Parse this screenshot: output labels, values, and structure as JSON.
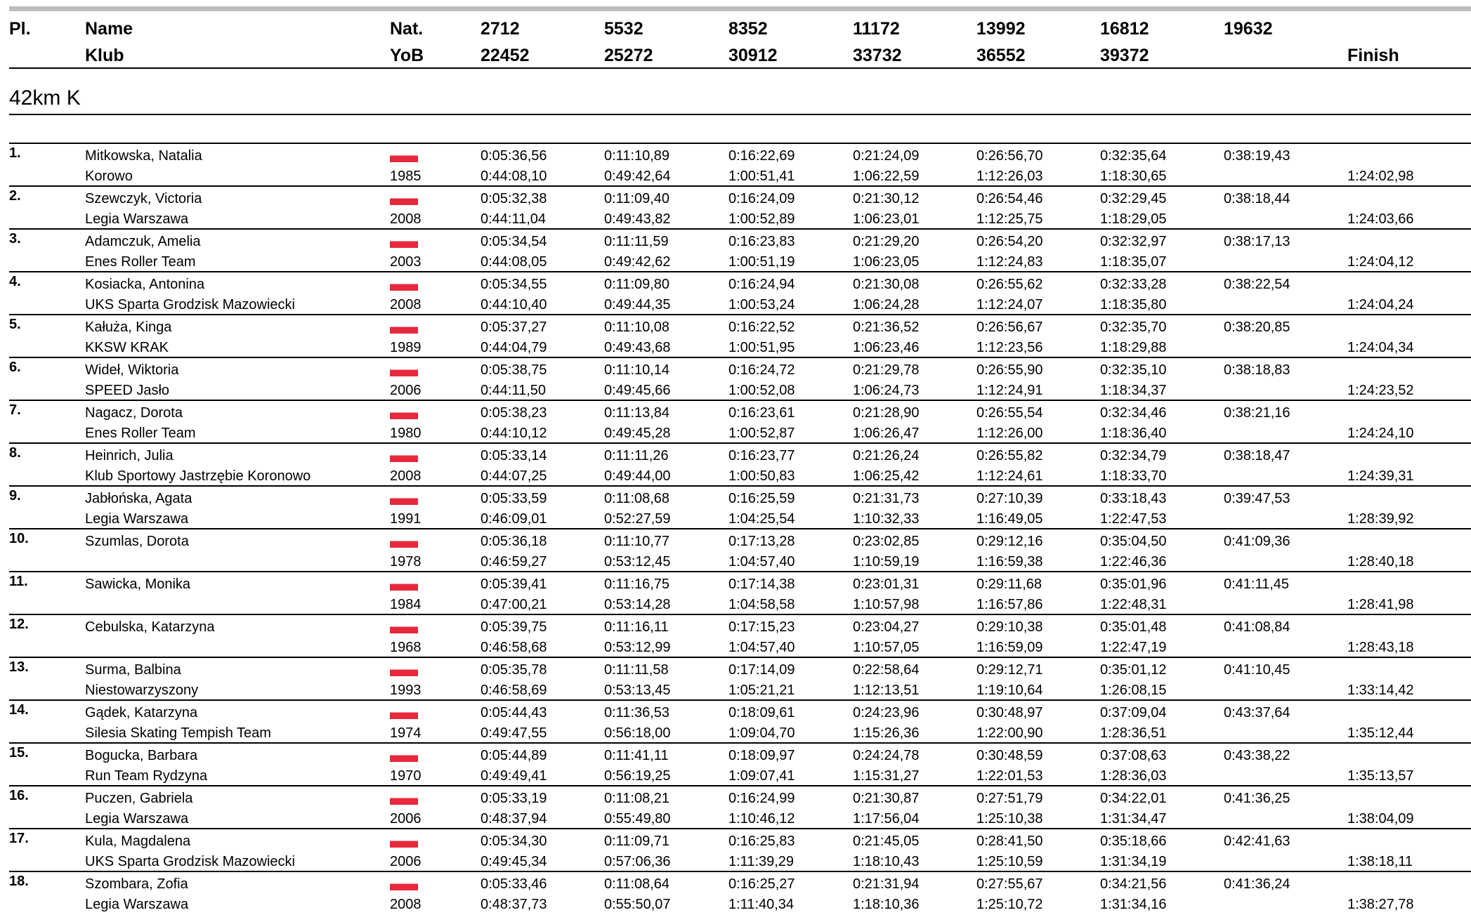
{
  "header": {
    "place": "Pl.",
    "name": "Name",
    "club": "Klub",
    "nat": "Nat.",
    "yob": "YoB",
    "splits_top": [
      "2712",
      "5532",
      "8352",
      "11172",
      "13992",
      "16812",
      "19632"
    ],
    "splits_bottom": [
      "22452",
      "25272",
      "30912",
      "33732",
      "36552",
      "39372"
    ],
    "finish": "Finish"
  },
  "section": "42km K",
  "rows": [
    {
      "place": "1.",
      "name": "Mitkowska, Natalia",
      "club": "Korowo",
      "yob": "1985",
      "splits": [
        "0:05:36,56",
        "0:11:10,89",
        "0:16:22,69",
        "0:21:24,09",
        "0:26:56,70",
        "0:32:35,64",
        "0:38:19,43"
      ],
      "splits2": [
        "0:44:08,10",
        "0:49:42,64",
        "1:00:51,41",
        "1:06:22,59",
        "1:12:26,03",
        "1:18:30,65"
      ],
      "finish": "1:24:02,98"
    },
    {
      "place": "2.",
      "name": "Szewczyk, Victoria",
      "club": "Legia Warszawa",
      "yob": "2008",
      "splits": [
        "0:05:32,38",
        "0:11:09,40",
        "0:16:24,09",
        "0:21:30,12",
        "0:26:54,46",
        "0:32:29,45",
        "0:38:18,44"
      ],
      "splits2": [
        "0:44:11,04",
        "0:49:43,82",
        "1:00:52,89",
        "1:06:23,01",
        "1:12:25,75",
        "1:18:29,05"
      ],
      "finish": "1:24:03,66"
    },
    {
      "place": "3.",
      "name": "Adamczuk, Amelia",
      "club": "Enes Roller Team",
      "yob": "2003",
      "splits": [
        "0:05:34,54",
        "0:11:11,59",
        "0:16:23,83",
        "0:21:29,20",
        "0:26:54,20",
        "0:32:32,97",
        "0:38:17,13"
      ],
      "splits2": [
        "0:44:08,05",
        "0:49:42,62",
        "1:00:51,19",
        "1:06:23,05",
        "1:12:24,83",
        "1:18:35,07"
      ],
      "finish": "1:24:04,12"
    },
    {
      "place": "4.",
      "name": "Kosiacka, Antonina",
      "club": "UKS Sparta Grodzisk Mazowiecki",
      "yob": "2008",
      "splits": [
        "0:05:34,55",
        "0:11:09,80",
        "0:16:24,94",
        "0:21:30,08",
        "0:26:55,62",
        "0:32:33,28",
        "0:38:22,54"
      ],
      "splits2": [
        "0:44:10,40",
        "0:49:44,35",
        "1:00:53,24",
        "1:06:24,28",
        "1:12:24,07",
        "1:18:35,80"
      ],
      "finish": "1:24:04,24"
    },
    {
      "place": "5.",
      "name": "Kałuża, Kinga",
      "club": "KKSW KRAK",
      "yob": "1989",
      "splits": [
        "0:05:37,27",
        "0:11:10,08",
        "0:16:22,52",
        "0:21:36,52",
        "0:26:56,67",
        "0:32:35,70",
        "0:38:20,85"
      ],
      "splits2": [
        "0:44:04,79",
        "0:49:43,68",
        "1:00:51,95",
        "1:06:23,46",
        "1:12:23,56",
        "1:18:29,88"
      ],
      "finish": "1:24:04,34"
    },
    {
      "place": "6.",
      "name": "Wideł, Wiktoria",
      "club": "SPEED Jasło",
      "yob": "2006",
      "splits": [
        "0:05:38,75",
        "0:11:10,14",
        "0:16:24,72",
        "0:21:29,78",
        "0:26:55,90",
        "0:32:35,10",
        "0:38:18,83"
      ],
      "splits2": [
        "0:44:11,50",
        "0:49:45,66",
        "1:00:52,08",
        "1:06:24,73",
        "1:12:24,91",
        "1:18:34,37"
      ],
      "finish": "1:24:23,52"
    },
    {
      "place": "7.",
      "name": "Nagacz, Dorota",
      "club": "Enes Roller Team",
      "yob": "1980",
      "splits": [
        "0:05:38,23",
        "0:11:13,84",
        "0:16:23,61",
        "0:21:28,90",
        "0:26:55,54",
        "0:32:34,46",
        "0:38:21,16"
      ],
      "splits2": [
        "0:44:10,12",
        "0:49:45,28",
        "1:00:52,87",
        "1:06:26,47",
        "1:12:26,00",
        "1:18:36,40"
      ],
      "finish": "1:24:24,10"
    },
    {
      "place": "8.",
      "name": "Heinrich, Julia",
      "club": "Klub Sportowy Jastrzębie Koronowo",
      "yob": "2008",
      "splits": [
        "0:05:33,14",
        "0:11:11,26",
        "0:16:23,77",
        "0:21:26,24",
        "0:26:55,82",
        "0:32:34,79",
        "0:38:18,47"
      ],
      "splits2": [
        "0:44:07,25",
        "0:49:44,00",
        "1:00:50,83",
        "1:06:25,42",
        "1:12:24,61",
        "1:18:33,70"
      ],
      "finish": "1:24:39,31"
    },
    {
      "place": "9.",
      "name": "Jabłońska, Agata",
      "club": "Legia Warszawa",
      "yob": "1991",
      "splits": [
        "0:05:33,59",
        "0:11:08,68",
        "0:16:25,59",
        "0:21:31,73",
        "0:27:10,39",
        "0:33:18,43",
        "0:39:47,53"
      ],
      "splits2": [
        "0:46:09,01",
        "0:52:27,59",
        "1:04:25,54",
        "1:10:32,33",
        "1:16:49,05",
        "1:22:47,53"
      ],
      "finish": "1:28:39,92"
    },
    {
      "place": "10.",
      "name": "Szumlas, Dorota",
      "yob": "1978",
      "splits": [
        "0:05:36,18",
        "0:11:10,77",
        "0:17:13,28",
        "0:23:02,85",
        "0:29:12,16",
        "0:35:04,50",
        "0:41:09,36"
      ],
      "splits2": [
        "0:46:59,27",
        "0:53:12,45",
        "1:04:57,40",
        "1:10:59,19",
        "1:16:59,38",
        "1:22:46,36"
      ],
      "finish": "1:28:40,18"
    },
    {
      "place": "11.",
      "name": "Sawicka, Monika",
      "yob": "1984",
      "splits": [
        "0:05:39,41",
        "0:11:16,75",
        "0:17:14,38",
        "0:23:01,31",
        "0:29:11,68",
        "0:35:01,96",
        "0:41:11,45"
      ],
      "splits2": [
        "0:47:00,21",
        "0:53:14,28",
        "1:04:58,58",
        "1:10:57,98",
        "1:16:57,86",
        "1:22:48,31"
      ],
      "finish": "1:28:41,98"
    },
    {
      "place": "12.",
      "name": "Cebulska, Katarzyna",
      "yob": "1968",
      "splits": [
        "0:05:39,75",
        "0:11:16,11",
        "0:17:15,23",
        "0:23:04,27",
        "0:29:10,38",
        "0:35:01,48",
        "0:41:08,84"
      ],
      "splits2": [
        "0:46:58,68",
        "0:53:12,99",
        "1:04:57,40",
        "1:10:57,05",
        "1:16:59,09",
        "1:22:47,19"
      ],
      "finish": "1:28:43,18"
    },
    {
      "place": "13.",
      "name": "Surma, Balbina",
      "club": "Niestowarzyszony",
      "yob": "1993",
      "splits": [
        "0:05:35,78",
        "0:11:11,58",
        "0:17:14,09",
        "0:22:58,64",
        "0:29:12,71",
        "0:35:01,12",
        "0:41:10,45"
      ],
      "splits2": [
        "0:46:58,69",
        "0:53:13,45",
        "1:05:21,21",
        "1:12:13,51",
        "1:19:10,64",
        "1:26:08,15"
      ],
      "finish": "1:33:14,42"
    },
    {
      "place": "14.",
      "name": "Gądek, Katarzyna",
      "club": "Silesia Skating Tempish Team",
      "yob": "1974",
      "splits": [
        "0:05:44,43",
        "0:11:36,53",
        "0:18:09,61",
        "0:24:23,96",
        "0:30:48,97",
        "0:37:09,04",
        "0:43:37,64"
      ],
      "splits2": [
        "0:49:47,55",
        "0:56:18,00",
        "1:09:04,70",
        "1:15:26,36",
        "1:22:00,90",
        "1:28:36,51"
      ],
      "finish": "1:35:12,44"
    },
    {
      "place": "15.",
      "name": "Bogucka, Barbara",
      "club": "Run Team Rydzyna",
      "yob": "1970",
      "splits": [
        "0:05:44,89",
        "0:11:41,11",
        "0:18:09,97",
        "0:24:24,78",
        "0:30:48,59",
        "0:37:08,63",
        "0:43:38,22"
      ],
      "splits2": [
        "0:49:49,41",
        "0:56:19,25",
        "1:09:07,41",
        "1:15:31,27",
        "1:22:01,53",
        "1:28:36,03"
      ],
      "finish": "1:35:13,57"
    },
    {
      "place": "16.",
      "name": "Puczen, Gabriela",
      "club": "Legia Warszawa",
      "yob": "2006",
      "splits": [
        "0:05:33,19",
        "0:11:08,21",
        "0:16:24,99",
        "0:21:30,87",
        "0:27:51,79",
        "0:34:22,01",
        "0:41:36,25"
      ],
      "splits2": [
        "0:48:37,94",
        "0:55:49,80",
        "1:10:46,12",
        "1:17:56,04",
        "1:25:10,38",
        "1:31:34,47"
      ],
      "finish": "1:38:04,09"
    },
    {
      "place": "17.",
      "name": "Kula, Magdalena",
      "club": "UKS Sparta Grodzisk Mazowiecki",
      "yob": "2006",
      "splits": [
        "0:05:34,30",
        "0:11:09,71",
        "0:16:25,83",
        "0:21:45,05",
        "0:28:41,50",
        "0:35:18,66",
        "0:42:41,63"
      ],
      "splits2": [
        "0:49:45,34",
        "0:57:06,36",
        "1:11:39,29",
        "1:18:10,43",
        "1:25:10,59",
        "1:31:34,19"
      ],
      "finish": "1:38:18,11"
    },
    {
      "place": "18.",
      "name": "Szombara, Zofia",
      "club": "Legia Warszawa",
      "yob": "2008",
      "splits": [
        "0:05:33,46",
        "0:11:08,64",
        "0:16:25,27",
        "0:21:31,94",
        "0:27:55,67",
        "0:34:21,56",
        "0:41:36,24"
      ],
      "splits2": [
        "0:48:37,73",
        "0:55:50,07",
        "1:11:40,34",
        "1:18:10,36",
        "1:25:10,72",
        "1:31:34,16"
      ],
      "finish": "1:38:27,78"
    }
  ]
}
